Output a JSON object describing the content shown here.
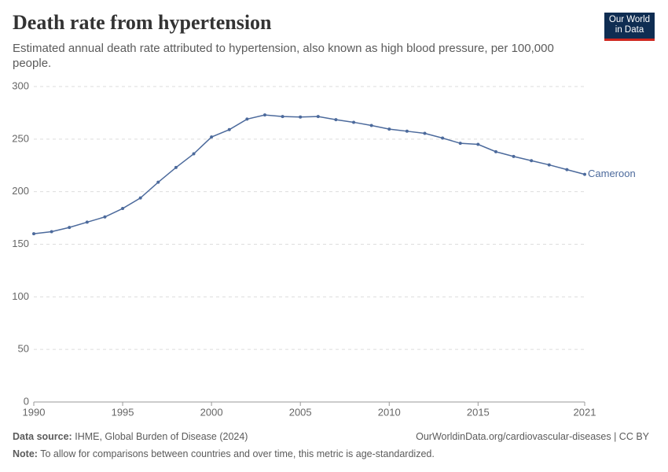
{
  "header": {
    "title": "Death rate from hypertension",
    "subtitle": "Estimated annual death rate attributed to hypertension, also known as high blood pressure, per 100,000 people.",
    "logo": [
      "Our World",
      "in Data"
    ]
  },
  "chart_data": {
    "type": "line",
    "x": [
      1990,
      1991,
      1992,
      1993,
      1994,
      1995,
      1996,
      1997,
      1998,
      1999,
      2000,
      2001,
      2002,
      2003,
      2004,
      2005,
      2006,
      2007,
      2008,
      2009,
      2010,
      2011,
      2012,
      2013,
      2014,
      2015,
      2016,
      2017,
      2018,
      2019,
      2020,
      2021
    ],
    "series": [
      {
        "name": "Cameroon",
        "color": "#4c6a9c",
        "values": [
          160,
          162,
          166,
          171,
          176,
          184,
          194,
          209,
          223,
          236,
          252,
          259,
          269,
          273,
          271.5,
          271,
          271.5,
          268.5,
          266,
          263,
          259.5,
          257.5,
          255.5,
          251,
          246,
          245,
          238,
          233.5,
          229.5,
          225.5,
          221,
          216.5
        ]
      }
    ],
    "xlim": [
      1990,
      2021
    ],
    "xticks": [
      1990,
      1995,
      2000,
      2005,
      2010,
      2015,
      2021
    ],
    "ylim": [
      0,
      300
    ],
    "yticks": [
      0,
      50,
      100,
      150,
      200,
      250,
      300
    ],
    "grid": true
  },
  "footer": {
    "source_label": "Data source:",
    "source": "IHME, Global Burden of Disease (2024)",
    "url": "OurWorldinData.org/cardiovascular-diseases | CC BY",
    "note_label": "Note:",
    "note": "To allow for comparisons between countries and over time, this metric is age-standardized."
  }
}
